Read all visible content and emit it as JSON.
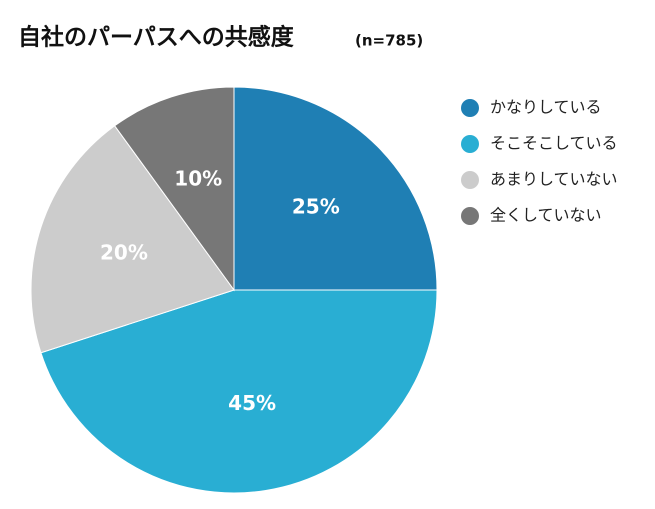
{
  "chart_data": {
    "type": "pie",
    "title": "自社のパーパスへの共感度",
    "subtitle": "(n=785)",
    "categories": [
      "かなりしている",
      "そこそこしている",
      "あまりしていない",
      "全くしていない"
    ],
    "values": [
      25,
      45,
      20,
      10
    ],
    "value_labels": [
      "25%",
      "45%",
      "20%",
      "10%"
    ],
    "colors": [
      "#1f7fb4",
      "#29aed3",
      "#cccccc",
      "#777777"
    ],
    "legend": "right"
  }
}
